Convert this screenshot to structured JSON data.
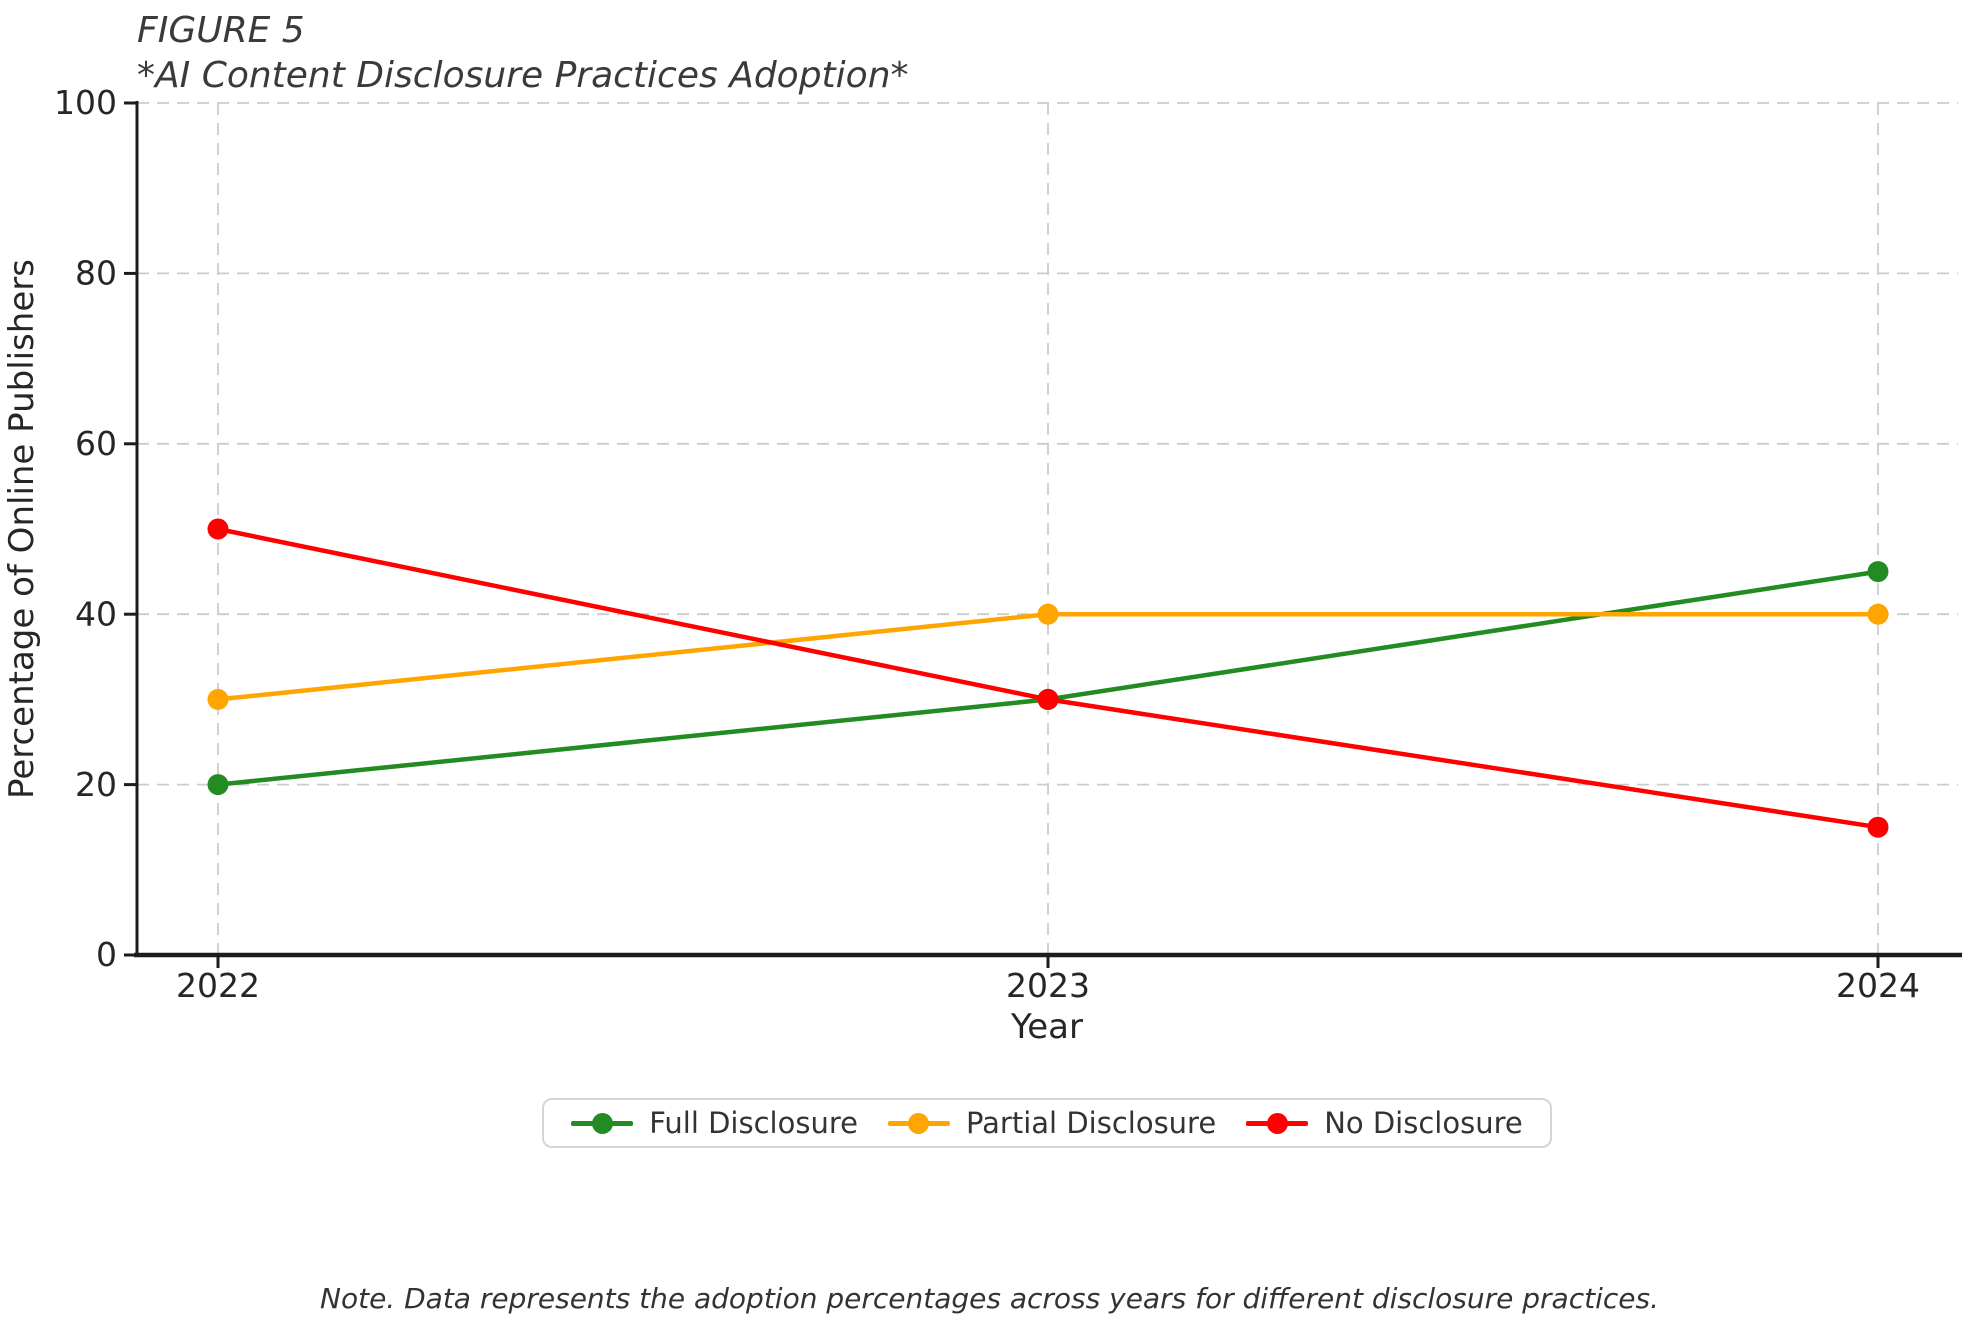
{
  "figure": {
    "label": "FIGURE 5",
    "title": "*AI Content Disclosure Practices Adoption*",
    "note": "Note. Data represents the adoption percentages across years for different disclosure practices."
  },
  "chart_data": {
    "type": "line",
    "categories": [
      "2022",
      "2023",
      "2024"
    ],
    "series": [
      {
        "name": "Full Disclosure",
        "color": "#228B22",
        "values": [
          20,
          30,
          45
        ]
      },
      {
        "name": "Partial Disclosure",
        "color": "#FFA500",
        "values": [
          30,
          40,
          40
        ]
      },
      {
        "name": "No Disclosure",
        "color": "#FF0000",
        "values": [
          50,
          30,
          15
        ]
      }
    ],
    "xlabel": "Year",
    "ylabel": "Percentage of Online Publishers",
    "ylim": [
      0,
      100
    ],
    "yticks": [
      0,
      20,
      40,
      60,
      80,
      100
    ],
    "grid": true,
    "grid_style": "dashed",
    "marker": "circle",
    "legend_position": "bottom-center"
  }
}
